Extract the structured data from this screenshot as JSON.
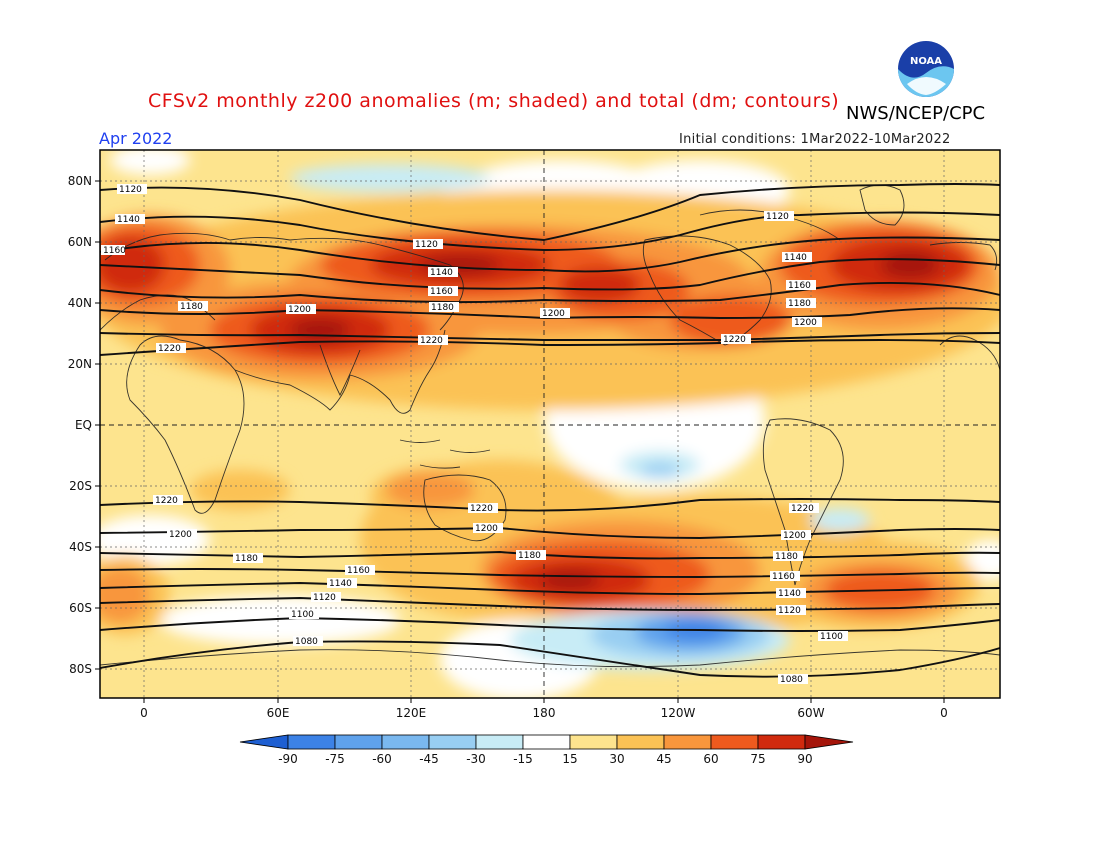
{
  "header": {
    "title": "CFSv2 monthly z200 anomalies (m; shaded) and total (dm; contours)",
    "agency": "NWS/NCEP/CPC",
    "month": "Apr 2022",
    "initial_conditions": "Initial conditions: 1Mar2022-10Mar2022"
  },
  "logo": {
    "text": "NOAA",
    "icon": "noaa-logo"
  },
  "map": {
    "lat_labels": [
      "80N",
      "60N",
      "40N",
      "20N",
      "EQ",
      "20S",
      "40S",
      "60S",
      "80S"
    ],
    "lon_labels": [
      "0",
      "60E",
      "120E",
      "180",
      "120W",
      "60W",
      "0"
    ],
    "contour_labels": [
      "1080",
      "1100",
      "1120",
      "1140",
      "1160",
      "1180",
      "1200",
      "1220"
    ],
    "colors": {
      "deep_blue": "#1e5fd2",
      "blue": "#3c82e6",
      "mid_blue": "#5fa2ec",
      "light_blue": "#98cef2",
      "pale_blue": "#c8ecf6",
      "white": "#ffffff",
      "pale_yellow": "#fde48e",
      "yellow": "#fbc255",
      "orange": "#f8963c",
      "red_orange": "#ee5a1e",
      "red": "#d02a0e",
      "dark_red": "#a5150a"
    }
  },
  "colorbar": {
    "labels": [
      "-90",
      "-75",
      "-60",
      "-45",
      "-30",
      "-15",
      "15",
      "30",
      "45",
      "60",
      "75",
      "90"
    ],
    "colors": [
      "#1e5fd2",
      "#3c82e6",
      "#5fa2ec",
      "#7ab8ef",
      "#98cef2",
      "#c8ecf6",
      "#ffffff",
      "#fde48e",
      "#fbc255",
      "#f8963c",
      "#ee5a1e",
      "#d02a0e",
      "#a5150a"
    ]
  }
}
